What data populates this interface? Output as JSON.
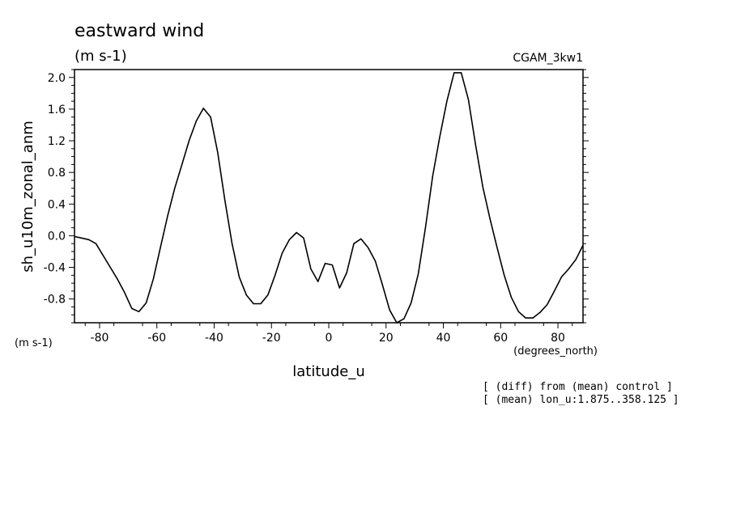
{
  "header": {
    "title": "eastward wind",
    "units": "(m s-1)",
    "dataset": "CGAM_3kw1"
  },
  "notes": {
    "line1": "[ (diff) from (mean) control ]",
    "line2": "[ (mean) lon_u:1.875..358.125 ]"
  },
  "chart_data": {
    "type": "line",
    "title": "eastward wind",
    "xlabel": "latitude_u",
    "xunits": "(degrees_north)",
    "ylabel": "sh_u10m_zonal_anm",
    "yunits": "(m s-1)",
    "xlim": [
      -88.75,
      88.75
    ],
    "ylim": [
      -1.1,
      2.1
    ],
    "xticks": [
      -80,
      -60,
      -40,
      -20,
      0,
      20,
      40,
      60,
      80
    ],
    "xtick_labels": [
      "-80",
      "-60",
      "-40",
      "-20",
      "0",
      "20",
      "40",
      "60",
      "80"
    ],
    "yticks": [
      -0.8,
      -0.4,
      0.0,
      0.4,
      0.8,
      1.2,
      1.6,
      2.0
    ],
    "ytick_labels": [
      "-0.8",
      "-0.4",
      "0.0",
      "0.4",
      "0.8",
      "1.2",
      "1.6",
      "2.0"
    ],
    "grid": false,
    "series": [
      {
        "x": [
          -88.75,
          -86.25,
          -83.75,
          -81.25,
          -78.75,
          -76.25,
          -73.75,
          -71.25,
          -68.75,
          -66.25,
          -63.75,
          -61.25,
          -58.75,
          -56.25,
          -53.75,
          -51.25,
          -48.75,
          -46.25,
          -43.75,
          -41.25,
          -38.75,
          -36.25,
          -33.75,
          -31.25,
          -28.75,
          -26.25,
          -23.75,
          -21.25,
          -18.75,
          -16.25,
          -13.75,
          -11.25,
          -8.75,
          -6.25,
          -3.75,
          -1.25,
          1.25,
          3.75,
          6.25,
          8.75,
          11.25,
          13.75,
          16.25,
          18.75,
          21.25,
          23.75,
          26.25,
          28.75,
          31.25,
          33.75,
          36.25,
          38.75,
          41.25,
          43.75,
          46.25,
          48.75,
          51.25,
          53.75,
          56.25,
          58.75,
          61.25,
          63.75,
          66.25,
          68.75,
          71.25,
          73.75,
          76.25,
          78.75,
          81.25,
          83.75,
          86.25,
          88.75
        ],
        "values": [
          -0.01,
          -0.03,
          -0.05,
          -0.1,
          -0.25,
          -0.4,
          -0.55,
          -0.72,
          -0.92,
          -0.96,
          -0.85,
          -0.55,
          -0.15,
          0.25,
          0.6,
          0.9,
          1.2,
          1.45,
          1.61,
          1.5,
          1.05,
          0.45,
          -0.1,
          -0.52,
          -0.75,
          -0.86,
          -0.86,
          -0.75,
          -0.5,
          -0.22,
          -0.05,
          0.04,
          -0.03,
          -0.42,
          -0.58,
          -0.35,
          -0.37,
          -0.66,
          -0.47,
          -0.1,
          -0.04,
          -0.15,
          -0.32,
          -0.62,
          -0.94,
          -1.1,
          -1.05,
          -0.85,
          -0.48,
          0.1,
          0.75,
          1.25,
          1.7,
          2.06,
          2.06,
          1.72,
          1.15,
          0.62,
          0.22,
          -0.15,
          -0.5,
          -0.78,
          -0.96,
          -1.04,
          -1.04,
          -0.97,
          -0.87,
          -0.7,
          -0.52,
          -0.42,
          -0.3,
          -0.12
        ]
      }
    ]
  }
}
